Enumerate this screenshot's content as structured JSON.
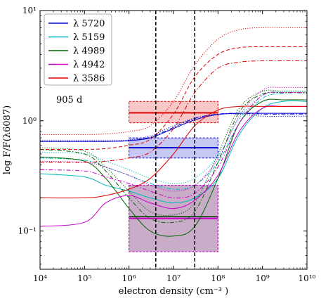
{
  "chart_data": {
    "type": "line",
    "title": "",
    "xlabel": "electron density (cm⁻³ )",
    "ylabel": "log F/F(λ6087)",
    "xscale": "log",
    "yscale": "log",
    "xlim": [
      10000,
      10000000000
    ],
    "ylim": [
      0.045,
      10
    ],
    "x_tick_values": [
      10000,
      100000,
      1000000,
      10000000,
      100000000,
      1000000000,
      10000000000
    ],
    "x_tick_labels": [
      "10⁴",
      "10⁵",
      "10⁶",
      "10⁷",
      "10⁸",
      "10⁹",
      "10¹⁰"
    ],
    "y_tick_values": [
      0.1,
      1,
      10
    ],
    "y_tick_labels": [
      "10⁻¹",
      "10⁰",
      "10¹"
    ],
    "annotation": "905 d",
    "legend_position": "top-left",
    "vertical_lines": [
      4000000,
      30000000
    ],
    "density_x": [
      10000,
      100000,
      300000,
      1000000,
      3000000,
      10000000,
      30000000,
      100000000,
      300000000,
      1000000000,
      3000000000,
      10000000000
    ],
    "series": [
      {
        "name": "λ 5720",
        "color": "#0000cc",
        "box": {
          "x": [
            1000000,
            100000000
          ],
          "y": [
            0.46,
            0.7
          ],
          "mid": 0.57
        },
        "curves": [
          {
            "style": "solid",
            "y": [
              0.65,
              0.65,
              0.65,
              0.66,
              0.7,
              0.85,
              1.02,
              1.14,
              1.17,
              1.17,
              1.17,
              1.17
            ]
          },
          {
            "style": "dotted",
            "y": [
              0.66,
              0.66,
              0.66,
              0.67,
              0.73,
              0.9,
              1.06,
              1.15,
              1.15,
              1.1,
              1.1,
              1.1
            ]
          },
          {
            "style": "dashdot",
            "y": [
              0.65,
              0.65,
              0.65,
              0.66,
              0.71,
              0.87,
              1.05,
              1.15,
              1.17,
              1.15,
              1.15,
              1.15
            ]
          }
        ]
      },
      {
        "name": "λ 5159",
        "color": "#00bbbb",
        "curves": [
          {
            "style": "solid",
            "y": [
              0.33,
              0.31,
              0.26,
              0.23,
              0.2,
              0.18,
              0.2,
              0.3,
              0.75,
              1.3,
              1.5,
              1.5
            ]
          },
          {
            "style": "dotted",
            "y": [
              0.52,
              0.5,
              0.43,
              0.36,
              0.3,
              0.27,
              0.3,
              0.48,
              1.05,
              1.7,
              1.85,
              1.85
            ]
          },
          {
            "style": "dashdot",
            "y": [
              0.46,
              0.44,
              0.38,
              0.32,
              0.27,
              0.24,
              0.26,
              0.42,
              0.95,
              1.6,
              1.78,
              1.78
            ]
          }
        ]
      },
      {
        "name": "λ 4989",
        "color": "#006600",
        "box": {
          "x": [
            1000000,
            100000000
          ],
          "y": [
            0.065,
            0.26
          ],
          "mid": 0.135
        },
        "curves": [
          {
            "style": "solid",
            "y": [
              0.47,
              0.43,
              0.3,
              0.16,
              0.1,
              0.09,
              0.11,
              0.3,
              0.95,
              1.5,
              1.55,
              1.55
            ]
          },
          {
            "style": "dotted",
            "y": [
              0.57,
              0.53,
              0.38,
              0.23,
              0.15,
              0.14,
              0.18,
              0.5,
              1.3,
              1.85,
              1.85,
              1.85
            ]
          },
          {
            "style": "dashdot",
            "y": [
              0.55,
              0.5,
              0.35,
              0.2,
              0.13,
              0.12,
              0.15,
              0.42,
              1.2,
              1.75,
              1.8,
              1.8
            ]
          }
        ]
      },
      {
        "name": "λ 4942",
        "color": "#cc00cc",
        "box": {
          "x": [
            1000000,
            100000000
          ],
          "y": [
            0.065,
            0.26
          ],
          "mid": 0.13
        },
        "curves": [
          {
            "style": "solid",
            "y": [
              0.11,
              0.12,
              0.18,
              0.21,
              0.18,
              0.16,
              0.19,
              0.32,
              0.8,
              1.3,
              1.35,
              1.35
            ]
          },
          {
            "style": "dotted",
            "y": [
              0.43,
              0.42,
              0.38,
              0.32,
              0.26,
              0.23,
              0.26,
              0.45,
              1.1,
              1.9,
              2.0,
              2.0
            ]
          },
          {
            "style": "dashdot",
            "y": [
              0.36,
              0.35,
              0.31,
              0.27,
              0.23,
              0.2,
              0.22,
              0.38,
              0.95,
              1.7,
              1.8,
              1.8
            ]
          }
        ]
      },
      {
        "name": "λ 3586",
        "color": "#dd0000",
        "box": {
          "x": [
            1000000,
            100000000
          ],
          "y": [
            0.96,
            1.5
          ],
          "mid": 1.18
        },
        "curves": [
          {
            "style": "solid",
            "y": [
              0.2,
              0.2,
              0.21,
              0.24,
              0.3,
              0.5,
              0.9,
              1.25,
              1.35,
              1.35,
              1.35,
              1.35
            ]
          },
          {
            "style": "dotted",
            "y": [
              0.75,
              0.75,
              0.76,
              0.8,
              0.9,
              1.5,
              3.2,
              5.5,
              6.7,
              7.0,
              7.0,
              7.0
            ]
          },
          {
            "style": "dashed",
            "y": [
              0.55,
              0.55,
              0.56,
              0.6,
              0.68,
              1.15,
              2.5,
              4.0,
              4.6,
              4.7,
              4.7,
              4.7
            ]
          },
          {
            "style": "dashdot",
            "y": [
              0.42,
              0.42,
              0.43,
              0.46,
              0.52,
              0.85,
              1.8,
              3.0,
              3.4,
              3.5,
              3.5,
              3.5
            ]
          }
        ]
      }
    ]
  }
}
